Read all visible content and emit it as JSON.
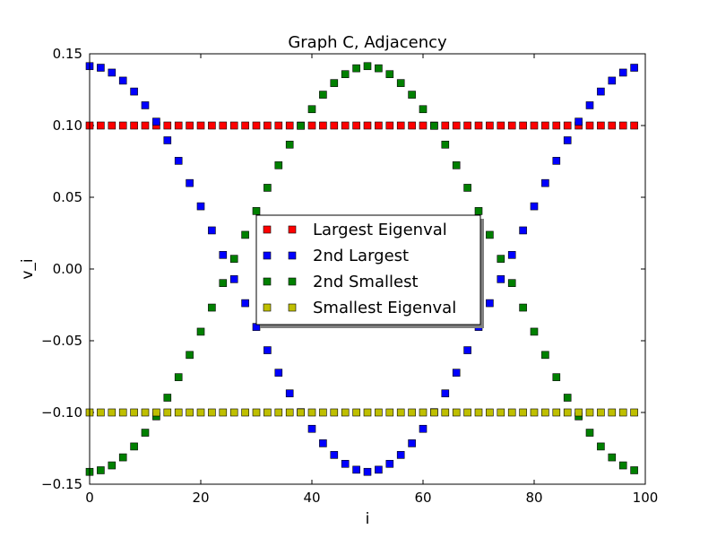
{
  "chart_data": {
    "type": "scatter",
    "title": "Graph C, Adjacency",
    "xlabel": "i",
    "ylabel": "v_i",
    "xlim": [
      0,
      100
    ],
    "ylim": [
      -0.15,
      0.15
    ],
    "xticks": [
      0,
      20,
      40,
      60,
      80,
      100
    ],
    "yticks": [
      -0.15,
      -0.1,
      -0.05,
      0.0,
      0.05,
      0.1,
      0.15
    ],
    "xtick_labels": [
      "0",
      "20",
      "40",
      "60",
      "80",
      "100"
    ],
    "ytick_labels": [
      "−0.15",
      "−0.10",
      "−0.05",
      "0.00",
      "0.05",
      "0.10",
      "0.15"
    ],
    "grid": false,
    "legend_placement": "center",
    "marker": "square",
    "x": [
      0,
      2,
      4,
      6,
      8,
      10,
      12,
      14,
      16,
      18,
      20,
      22,
      24,
      26,
      28,
      30,
      32,
      34,
      36,
      38,
      40,
      42,
      44,
      46,
      48,
      50,
      52,
      54,
      56,
      58,
      60,
      62,
      64,
      66,
      68,
      70,
      72,
      74,
      76,
      78,
      80,
      82,
      84,
      86,
      88,
      90,
      92,
      94,
      96,
      98
    ],
    "series": [
      {
        "name": "Largest Eigenval",
        "color": "#ff0000",
        "values": [
          0.1,
          0.1,
          0.1,
          0.1,
          0.1,
          0.1,
          0.1,
          0.1,
          0.1,
          0.1,
          0.1,
          0.1,
          0.1,
          0.1,
          0.1,
          0.1,
          0.1,
          0.1,
          0.1,
          0.1,
          0.1,
          0.1,
          0.1,
          0.1,
          0.1,
          0.1,
          0.1,
          0.1,
          0.1,
          0.1,
          0.1,
          0.1,
          0.1,
          0.1,
          0.1,
          0.1,
          0.1,
          0.1,
          0.1,
          0.1,
          0.1,
          0.1,
          0.1,
          0.1,
          0.1,
          0.1,
          0.1,
          0.1,
          0.1,
          0.1
        ]
      },
      {
        "name": "2nd Largest",
        "color": "#0000ff",
        "values": [
          0.1414,
          0.1403,
          0.1369,
          0.1313,
          0.1237,
          0.1141,
          0.1027,
          0.0897,
          0.0754,
          0.0599,
          0.0437,
          0.0269,
          0.0098,
          -0.0071,
          -0.0238,
          -0.0404,
          -0.0566,
          -0.0723,
          -0.0867,
          -0.0998,
          -0.1114,
          -0.1215,
          -0.1296,
          -0.1358,
          -0.1399,
          -0.1414,
          -0.1399,
          -0.1358,
          -0.1296,
          -0.1215,
          -0.1114,
          -0.0998,
          -0.0867,
          -0.0723,
          -0.0566,
          -0.0404,
          -0.0238,
          -0.0071,
          0.0098,
          0.0269,
          0.0437,
          0.0599,
          0.0754,
          0.0897,
          0.1027,
          0.1141,
          0.1237,
          0.1313,
          0.1369,
          0.1403
        ]
      },
      {
        "name": "2nd Smallest",
        "color": "#008000",
        "values": [
          -0.1414,
          -0.1403,
          -0.1369,
          -0.1313,
          -0.1237,
          -0.1141,
          -0.1027,
          -0.0897,
          -0.0754,
          -0.0599,
          -0.0437,
          -0.0269,
          -0.0098,
          0.0071,
          0.0238,
          0.0404,
          0.0566,
          0.0723,
          0.0867,
          0.0998,
          0.1114,
          0.1215,
          0.1296,
          0.1358,
          0.1399,
          0.1414,
          0.1399,
          0.1358,
          0.1296,
          0.1215,
          0.1114,
          0.0998,
          0.0867,
          0.0723,
          0.0566,
          0.0404,
          0.0238,
          0.0071,
          -0.0098,
          -0.0269,
          -0.0437,
          -0.0599,
          -0.0754,
          -0.0897,
          -0.1027,
          -0.1141,
          -0.1237,
          -0.1313,
          -0.1369,
          -0.1403
        ]
      },
      {
        "name": "Smallest Eigenval",
        "color": "#bfbf00",
        "values": [
          -0.1,
          -0.1,
          -0.1,
          -0.1,
          -0.1,
          -0.1,
          -0.1,
          -0.1,
          -0.1,
          -0.1,
          -0.1,
          -0.1,
          -0.1,
          -0.1,
          -0.1,
          -0.1,
          -0.1,
          -0.1,
          -0.1,
          -0.1,
          -0.1,
          -0.1,
          -0.1,
          -0.1,
          -0.1,
          -0.1,
          -0.1,
          -0.1,
          -0.1,
          -0.1,
          -0.1,
          -0.1,
          -0.1,
          -0.1,
          -0.1,
          -0.1,
          -0.1,
          -0.1,
          -0.1,
          -0.1,
          -0.1,
          -0.1,
          -0.1,
          -0.1,
          -0.1,
          -0.1,
          -0.1,
          -0.1,
          -0.1,
          -0.1
        ]
      }
    ]
  }
}
